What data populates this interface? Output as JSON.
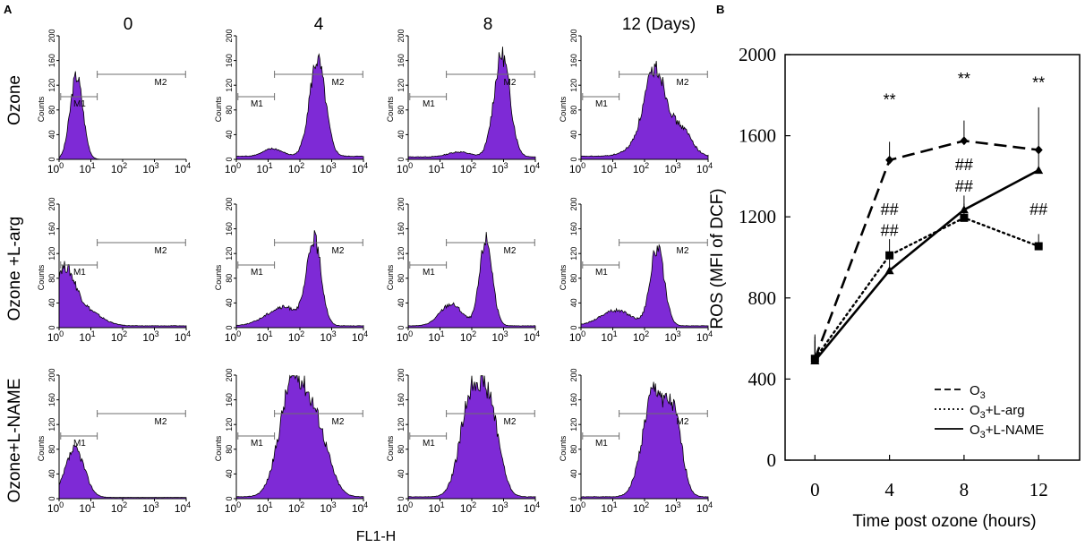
{
  "colors": {
    "fill": "#7e2ad6",
    "stroke": "#000000",
    "marker": "#6f6f6f"
  },
  "panel_a": {
    "letter": "A",
    "column_labels": [
      "0",
      "4",
      "8",
      "12 (Days)"
    ],
    "row_labels": [
      "Ozone",
      "Ozone +L-arg",
      "Ozone+L-NAME"
    ],
    "counts_label": "Counts",
    "y_ticks": [
      "0",
      "40",
      "80",
      "120",
      "160",
      "200"
    ],
    "x_ticks": [
      {
        "base": "10",
        "exp": "0"
      },
      {
        "base": "10",
        "exp": "1"
      },
      {
        "base": "10",
        "exp": "2"
      },
      {
        "base": "10",
        "exp": "3"
      },
      {
        "base": "10",
        "exp": "4"
      }
    ],
    "x_title": "FL1-H",
    "marker_labels": {
      "m1": "M1",
      "m2": "M2"
    },
    "histograms": [
      [
        {
          "peaks": [
            {
              "mu": 0.55,
              "sigma": 0.2,
              "h": 135
            }
          ],
          "tail": 0
        },
        {
          "peaks": [
            {
              "mu": 1.15,
              "sigma": 0.3,
              "h": 12
            },
            {
              "mu": 2.55,
              "sigma": 0.25,
              "h": 155
            }
          ],
          "tail": 5
        },
        {
          "peaks": [
            {
              "mu": 1.6,
              "sigma": 0.35,
              "h": 8
            },
            {
              "mu": 2.95,
              "sigma": 0.25,
              "h": 165
            }
          ],
          "tail": 4
        },
        {
          "peaks": [
            {
              "mu": 1.7,
              "sigma": 0.4,
              "h": 10
            },
            {
              "mu": 2.35,
              "sigma": 0.35,
              "h": 140
            },
            {
              "mu": 3.2,
              "sigma": 0.3,
              "h": 40
            }
          ],
          "tail": 5
        }
      ],
      [
        {
          "peaks": [
            {
              "mu": 0.15,
              "sigma": 0.35,
              "h": 90
            },
            {
              "mu": 0.9,
              "sigma": 0.45,
              "h": 22
            }
          ],
          "tail": 3
        },
        {
          "peaks": [
            {
              "mu": 1.5,
              "sigma": 0.55,
              "h": 30
            },
            {
              "mu": 2.45,
              "sigma": 0.22,
              "h": 135
            }
          ],
          "tail": 3
        },
        {
          "peaks": [
            {
              "mu": 1.35,
              "sigma": 0.35,
              "h": 35
            },
            {
              "mu": 2.45,
              "sigma": 0.2,
              "h": 140
            }
          ],
          "tail": 3
        },
        {
          "peaks": [
            {
              "mu": 1.1,
              "sigma": 0.5,
              "h": 25
            },
            {
              "mu": 2.4,
              "sigma": 0.22,
              "h": 125
            }
          ],
          "tail": 3
        }
      ],
      [
        {
          "peaks": [
            {
              "mu": 0.5,
              "sigma": 0.3,
              "h": 78
            }
          ],
          "tail": 2
        },
        {
          "peaks": [
            {
              "mu": 1.75,
              "sigma": 0.4,
              "h": 175
            },
            {
              "mu": 2.5,
              "sigma": 0.4,
              "h": 110
            }
          ],
          "tail": 3
        },
        {
          "peaks": [
            {
              "mu": 2.0,
              "sigma": 0.35,
              "h": 165
            },
            {
              "mu": 2.6,
              "sigma": 0.3,
              "h": 120
            }
          ],
          "tail": 3
        },
        {
          "peaks": [
            {
              "mu": 2.3,
              "sigma": 0.35,
              "h": 170
            },
            {
              "mu": 2.95,
              "sigma": 0.25,
              "h": 110
            }
          ],
          "tail": 3
        }
      ]
    ]
  },
  "chart_data": {
    "type": "line",
    "letter": "B",
    "x": [
      0,
      4,
      8,
      12
    ],
    "x_tick_labels": [
      "0",
      "4",
      "8",
      "12"
    ],
    "xlabel": "Time post ozone (hours)",
    "ylabel": "ROS (MFI of DCF)",
    "ylim": [
      0,
      2000
    ],
    "y_ticks": [
      0,
      400,
      800,
      1200,
      1600,
      2000
    ],
    "legend_position": "bottom-right",
    "series": [
      {
        "name": "O3",
        "name_base": "O",
        "name_sub": "3",
        "name_suffix": "",
        "style": "dashed",
        "marker": "diamond",
        "values": [
          500,
          1480,
          1575,
          1530
        ],
        "errors": [
          120,
          90,
          100,
          210
        ]
      },
      {
        "name": "O3+L-arg",
        "name_base": "O",
        "name_sub": "3",
        "name_suffix": "+L-arg",
        "style": "dotted",
        "marker": "square",
        "values": [
          500,
          1010,
          1195,
          1055
        ],
        "errors": [
          110,
          80,
          70,
          60
        ]
      },
      {
        "name": "O3+L-NAME",
        "name_base": "O",
        "name_sub": "3",
        "name_suffix": "+L-NAME",
        "style": "solid",
        "marker": "triangle",
        "values": [
          490,
          935,
          1235,
          1430
        ],
        "errors": [
          100,
          70,
          70,
          80
        ]
      }
    ],
    "annotations": [
      {
        "text": "**",
        "x": 4,
        "y": 1750
      },
      {
        "text": "**",
        "x": 8,
        "y": 1855
      },
      {
        "text": "**",
        "x": 12,
        "y": 1835
      },
      {
        "text": "##",
        "x": 4,
        "y": 1210
      },
      {
        "text": "##",
        "x": 4,
        "y": 1105
      },
      {
        "text": "##",
        "x": 8,
        "y": 1430
      },
      {
        "text": "##",
        "x": 8,
        "y": 1325
      },
      {
        "text": "##",
        "x": 12,
        "y": 1210
      }
    ]
  }
}
